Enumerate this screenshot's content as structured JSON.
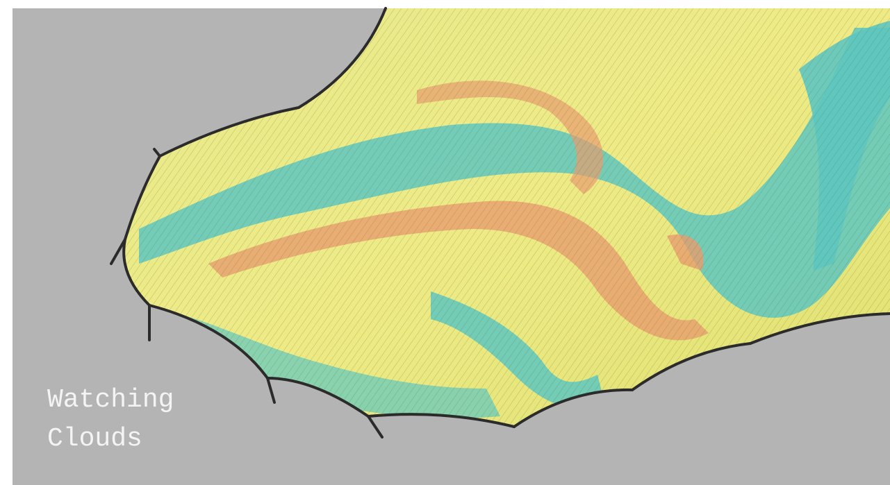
{
  "caption": {
    "line1": "Watching",
    "line2": "Clouds"
  }
}
